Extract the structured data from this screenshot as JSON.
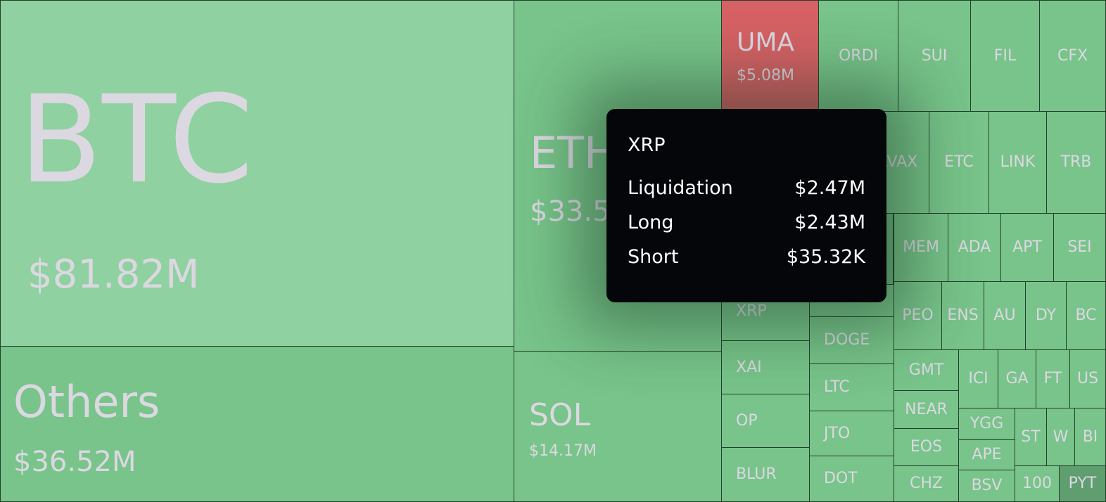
{
  "tiles": [
    {
      "label": "BTC",
      "value": "$81.82M"
    },
    {
      "label": "Others",
      "value": "$36.52M"
    },
    {
      "label": "ETH",
      "value": "$33.5"
    },
    {
      "label": "SOL",
      "value": "$14.17M"
    },
    {
      "label": "UMA",
      "value": "$5.08M"
    },
    {
      "label": "ORDI"
    },
    {
      "label": "SUI"
    },
    {
      "label": "FIL"
    },
    {
      "label": "CFX"
    },
    {
      "label": "AVAX"
    },
    {
      "label": "ETC"
    },
    {
      "label": "LINK"
    },
    {
      "label": "TRB"
    },
    {
      "label": "MEM"
    },
    {
      "label": "ADA"
    },
    {
      "label": "APT"
    },
    {
      "label": "SEI"
    },
    {
      "label": "PEO"
    },
    {
      "label": "ENS"
    },
    {
      "label": "AU"
    },
    {
      "label": "DY"
    },
    {
      "label": "BC"
    },
    {
      "label": "GMT"
    },
    {
      "label": "ICI"
    },
    {
      "label": "GA"
    },
    {
      "label": "FT"
    },
    {
      "label": "US"
    },
    {
      "label": "NEAR"
    },
    {
      "label": "EOS"
    },
    {
      "label": "CHZ"
    },
    {
      "label": "YGG"
    },
    {
      "label": "APE"
    },
    {
      "label": "BSV"
    },
    {
      "label": "ST"
    },
    {
      "label": "W"
    },
    {
      "label": "BI"
    },
    {
      "label": "100"
    },
    {
      "label": "PYT"
    },
    {
      "label": "XRP"
    },
    {
      "label": "XAI"
    },
    {
      "label": "OP"
    },
    {
      "label": "BLUR"
    },
    {
      "label": "DOGE"
    },
    {
      "label": "LTC"
    },
    {
      "label": "JTO"
    },
    {
      "label": "DOT"
    }
  ],
  "tooltip": {
    "title": "XRP",
    "rows": [
      {
        "label": "Liquidation",
        "value": "$2.47M"
      },
      {
        "label": "Long",
        "value": "$2.43M"
      },
      {
        "label": "Short",
        "value": "$35.32K"
      }
    ]
  }
}
